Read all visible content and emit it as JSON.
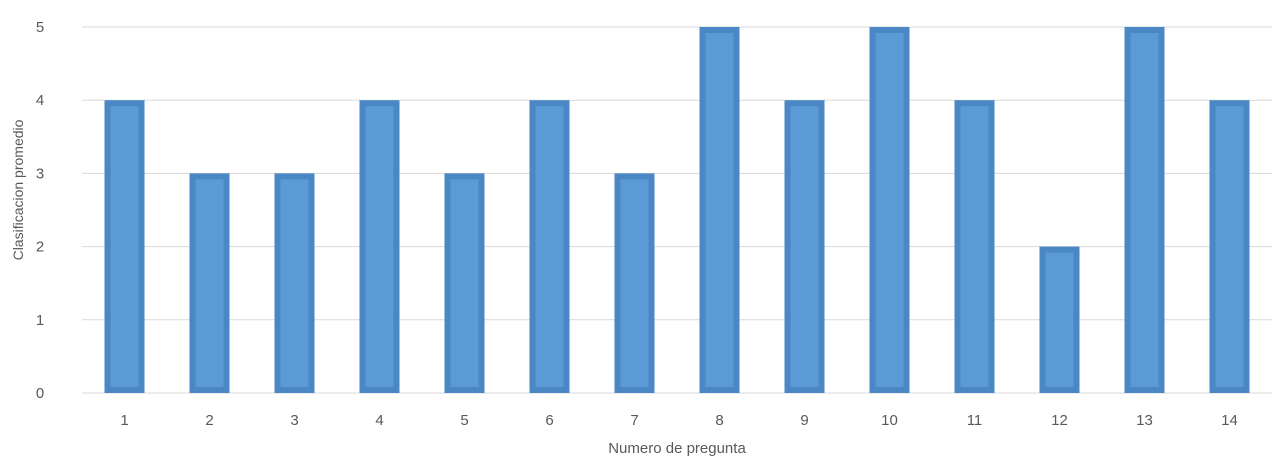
{
  "chart_data": {
    "type": "bar",
    "title": "",
    "xlabel": "Numero de pregunta",
    "ylabel": "Clasificacion promedio",
    "categories": [
      "1",
      "2",
      "3",
      "4",
      "5",
      "6",
      "7",
      "8",
      "9",
      "10",
      "11",
      "12",
      "13",
      "14"
    ],
    "values": [
      4,
      3,
      3,
      4,
      3,
      4,
      3,
      5,
      4,
      5,
      4,
      2,
      5,
      4
    ],
    "ylim": [
      0,
      5
    ],
    "yticks": [
      0,
      1,
      2,
      3,
      4,
      5
    ],
    "grid": true,
    "legend": "none",
    "colors": {
      "bar_fill": "#5B9BD5",
      "bar_border": "#4A87C4",
      "grid": "#D9D9D9",
      "axis": "#D9D9D9",
      "text": "#595959"
    }
  }
}
